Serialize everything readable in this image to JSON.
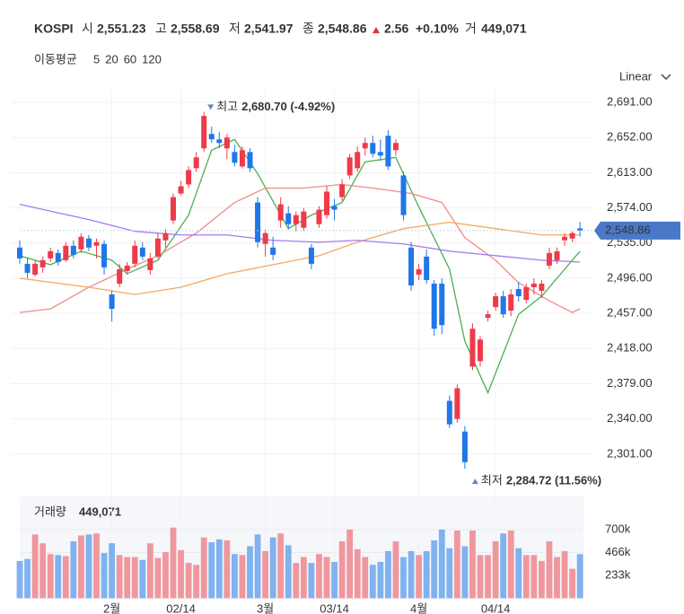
{
  "header": {
    "symbol": "KOSPI",
    "open_label": "시",
    "open": "2,551.23",
    "high_label": "고",
    "high": "2,558.69",
    "low_label": "저",
    "low": "2,541.97",
    "close_label": "종",
    "close": "2,548.86",
    "change": "2.56",
    "change_pct": "+0.10%",
    "volume_label": "거",
    "volume": "449,071"
  },
  "ma_label": "이동평균",
  "scale_mode": "Linear",
  "chart_data": {
    "type": "candlestick",
    "up_color": "#ee3a4a",
    "down_color": "#1f77e8",
    "vol_up_color": "#f0979e",
    "vol_down_color": "#7fb2ee",
    "categories": [
      null,
      null,
      null,
      null,
      null,
      null,
      null,
      null,
      null,
      null,
      null,
      null,
      "2월",
      null,
      null,
      null,
      null,
      null,
      null,
      null,
      null,
      "02/14",
      null,
      null,
      null,
      null,
      null,
      null,
      null,
      null,
      null,
      null,
      "3월",
      null,
      null,
      null,
      null,
      null,
      null,
      null,
      null,
      "03/14",
      null,
      null,
      null,
      null,
      null,
      null,
      null,
      null,
      null,
      null,
      "4월",
      null,
      null,
      null,
      null,
      null,
      null,
      null,
      null,
      null,
      "04/14",
      null,
      null,
      null,
      null,
      null,
      null,
      null,
      null,
      null,
      null,
      null
    ],
    "ohlc": [
      [
        2530,
        2538,
        2512,
        2518
      ],
      [
        2512,
        2518,
        2496,
        2502
      ],
      [
        2500,
        2516,
        2498,
        2512
      ],
      [
        2508,
        2520,
        2502,
        2516
      ],
      [
        2518,
        2530,
        2514,
        2526
      ],
      [
        2524,
        2528,
        2510,
        2514
      ],
      [
        2516,
        2536,
        2514,
        2532
      ],
      [
        2532,
        2538,
        2518,
        2522
      ],
      [
        2528,
        2546,
        2524,
        2542
      ],
      [
        2540,
        2544,
        2526,
        2530
      ],
      [
        2532,
        2540,
        2518,
        2536
      ],
      [
        2534,
        2538,
        2500,
        2508
      ],
      [
        2478,
        2482,
        2448,
        2462
      ],
      [
        2490,
        2512,
        2486,
        2506
      ],
      [
        2504,
        2514,
        2500,
        2510
      ],
      [
        2512,
        2538,
        2508,
        2532
      ],
      [
        2530,
        2536,
        2516,
        2520
      ],
      [
        2505,
        2524,
        2500,
        2518
      ],
      [
        2520,
        2546,
        2518,
        2540
      ],
      [
        2538,
        2550,
        2530,
        2546
      ],
      [
        2560,
        2590,
        2556,
        2586
      ],
      [
        2590,
        2604,
        2588,
        2598
      ],
      [
        2600,
        2620,
        2596,
        2616
      ],
      [
        2618,
        2636,
        2614,
        2630
      ],
      [
        2640,
        2680.7,
        2636,
        2676
      ],
      [
        2656,
        2664,
        2646,
        2650
      ],
      [
        2650,
        2658,
        2640,
        2646
      ],
      [
        2640,
        2656,
        2628,
        2652
      ],
      [
        2636,
        2644,
        2620,
        2624
      ],
      [
        2620,
        2642,
        2618,
        2638
      ],
      [
        2636,
        2640,
        2614,
        2618
      ],
      [
        2580,
        2586,
        2530,
        2536
      ],
      [
        2534,
        2550,
        2520,
        2546
      ],
      [
        2530,
        2542,
        2516,
        2522
      ],
      [
        2560,
        2586,
        2552,
        2578
      ],
      [
        2568,
        2576,
        2550,
        2556
      ],
      [
        2556,
        2570,
        2548,
        2566
      ],
      [
        2552,
        2574,
        2548,
        2570
      ],
      [
        2530,
        2534,
        2506,
        2512
      ],
      [
        2556,
        2576,
        2552,
        2572
      ],
      [
        2566,
        2598,
        2562,
        2592
      ],
      [
        2576,
        2584,
        2560,
        2572
      ],
      [
        2586,
        2606,
        2582,
        2600
      ],
      [
        2610,
        2634,
        2606,
        2630
      ],
      [
        2618,
        2642,
        2614,
        2636
      ],
      [
        2640,
        2652,
        2632,
        2646
      ],
      [
        2646,
        2654,
        2630,
        2634
      ],
      [
        2636,
        2650,
        2626,
        2632
      ],
      [
        2654,
        2660,
        2616,
        2620
      ],
      [
        2638,
        2650,
        2632,
        2646
      ],
      [
        2610,
        2614,
        2560,
        2566
      ],
      [
        2530,
        2536,
        2482,
        2488
      ],
      [
        2500,
        2512,
        2494,
        2506
      ],
      [
        2520,
        2528,
        2490,
        2494
      ],
      [
        2490,
        2494,
        2432,
        2440
      ],
      [
        2490,
        2496,
        2434,
        2444
      ],
      [
        2360,
        2366,
        2330,
        2334
      ],
      [
        2340,
        2378,
        2336,
        2374
      ],
      [
        2326,
        2332,
        2284.72,
        2292
      ],
      [
        2398,
        2446,
        2394,
        2440
      ],
      [
        2404,
        2432,
        2398,
        2428
      ],
      [
        2452,
        2460,
        2448,
        2456
      ],
      [
        2464,
        2480,
        2460,
        2476
      ],
      [
        2476,
        2482,
        2452,
        2456
      ],
      [
        2460,
        2484,
        2454,
        2478
      ],
      [
        2484,
        2492,
        2470,
        2476
      ],
      [
        2472,
        2490,
        2468,
        2486
      ],
      [
        2486,
        2496,
        2478,
        2490
      ],
      [
        2482,
        2494,
        2474,
        2490
      ],
      [
        2510,
        2530,
        2506,
        2524
      ],
      [
        2516,
        2530,
        2512,
        2526
      ],
      [
        2538,
        2546,
        2532,
        2542
      ],
      [
        2540,
        2548,
        2536,
        2546
      ],
      [
        2551.23,
        2558.69,
        2541.97,
        2548.86
      ]
    ],
    "ylim": [
      2262,
      2705
    ],
    "yticks": [
      {
        "value": 2691,
        "label": "2,691.00"
      },
      {
        "value": 2652,
        "label": "2,652.00"
      },
      {
        "value": 2613,
        "label": "2,613.00"
      },
      {
        "value": 2574,
        "label": "2,574.00"
      },
      {
        "value": 2535,
        "label": "2,535.00"
      },
      {
        "value": 2496,
        "label": "2,496.00"
      },
      {
        "value": 2457,
        "label": "2,457.00"
      },
      {
        "value": 2418,
        "label": "2,418.00"
      },
      {
        "value": 2379,
        "label": "2,379.00"
      },
      {
        "value": 2340,
        "label": "2,340.00"
      },
      {
        "value": 2301,
        "label": "2,301.00"
      }
    ],
    "last_price": {
      "value": 2548.86,
      "label": "2,548.86"
    },
    "high_annotation": {
      "text": "최고",
      "value": 2680.7,
      "label": "2,680.70 (-4.92%)"
    },
    "low_annotation": {
      "text": "최저",
      "value": 2284.72,
      "label": "2,284.72 (11.56%)"
    },
    "moving_averages": [
      {
        "name": "5",
        "color": "#4cb050",
        "x": [
          0,
          4,
          8,
          12,
          14,
          18,
          22,
          25,
          28,
          31,
          35,
          38,
          42,
          45,
          49,
          52,
          56,
          58,
          61,
          65,
          68,
          73
        ],
        "values": [
          2521,
          2511,
          2526,
          2516,
          2501,
          2516,
          2566,
          2638,
          2650,
          2612,
          2551,
          2566,
          2580,
          2625,
          2630,
          2575,
          2506,
          2426,
          2369,
          2456,
          2476,
          2526
        ]
      },
      {
        "name": "20",
        "color": "#f08a8a",
        "x": [
          0,
          4,
          9,
          14,
          18,
          23,
          28,
          32,
          37,
          42,
          46,
          51,
          55,
          58,
          62,
          65,
          69,
          72,
          73
        ],
        "values": [
          2458,
          2462,
          2486,
          2506,
          2521,
          2546,
          2580,
          2596,
          2596,
          2600,
          2596,
          2590,
          2580,
          2541,
          2516,
          2491,
          2471,
          2458,
          2462
        ]
      },
      {
        "name": "60",
        "color": "#f5a862",
        "x": [
          0,
          9,
          15,
          21,
          27,
          33,
          39,
          44,
          50,
          56,
          62,
          68,
          73
        ],
        "values": [
          2496,
          2486,
          2478,
          2486,
          2501,
          2511,
          2521,
          2536,
          2551,
          2558,
          2551,
          2544,
          2544
        ]
      },
      {
        "name": "120",
        "color": "#a47cf2",
        "x": [
          0,
          9,
          15,
          21,
          27,
          33,
          39,
          44,
          50,
          56,
          62,
          68,
          73
        ],
        "values": [
          2578,
          2561,
          2548,
          2544,
          2544,
          2538,
          2536,
          2538,
          2534,
          2526,
          2521,
          2516,
          2514
        ]
      }
    ],
    "volume": {
      "title": "거래량",
      "label": "449,071",
      "ylim": [
        0,
        1038000
      ],
      "yticks": [
        {
          "value": 700000,
          "label": "700k"
        },
        {
          "value": 466000,
          "label": "466k"
        },
        {
          "value": 233000,
          "label": "233k"
        }
      ],
      "values": [
        380000,
        400000,
        650000,
        560000,
        450000,
        440000,
        430000,
        580000,
        640000,
        650000,
        660000,
        460000,
        560000,
        440000,
        420000,
        420000,
        390000,
        560000,
        410000,
        470000,
        720000,
        490000,
        360000,
        340000,
        620000,
        570000,
        600000,
        590000,
        450000,
        440000,
        530000,
        650000,
        480000,
        620000,
        660000,
        540000,
        360000,
        420000,
        360000,
        450000,
        420000,
        370000,
        580000,
        700000,
        500000,
        420000,
        340000,
        370000,
        480000,
        580000,
        420000,
        480000,
        440000,
        480000,
        590000,
        700000,
        510000,
        690000,
        530000,
        690000,
        440000,
        440000,
        580000,
        660000,
        690000,
        510000,
        440000,
        440000,
        380000,
        580000,
        420000,
        480000,
        300000,
        449071
      ]
    }
  }
}
